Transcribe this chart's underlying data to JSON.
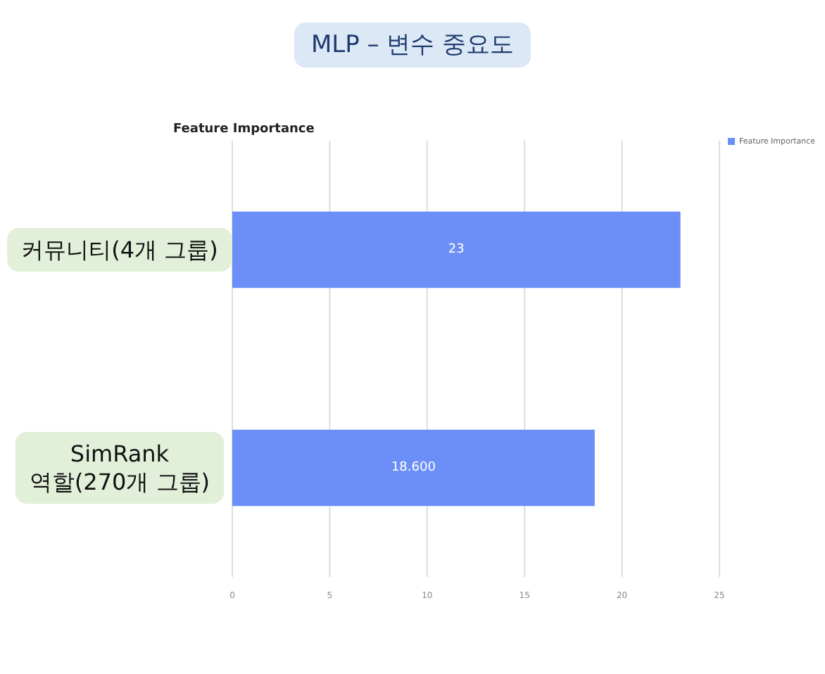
{
  "chart_data": {
    "type": "bar",
    "orientation": "horizontal",
    "title": "MLP – 변수 중요도",
    "subtitle": "Feature Importance",
    "categories": [
      "커뮤니티(4개 그룹)",
      "SimRank\n역할(270개 그룹)"
    ],
    "series": [
      {
        "name": "Feature Importance",
        "color": "#6b8ff7",
        "values": [
          23,
          18.6
        ],
        "value_labels": [
          "23",
          "18.600"
        ]
      }
    ],
    "xlim": [
      0,
      25
    ],
    "xticks": [
      0,
      5,
      10,
      15,
      20,
      25
    ],
    "grid": "x",
    "legend": "top right"
  }
}
